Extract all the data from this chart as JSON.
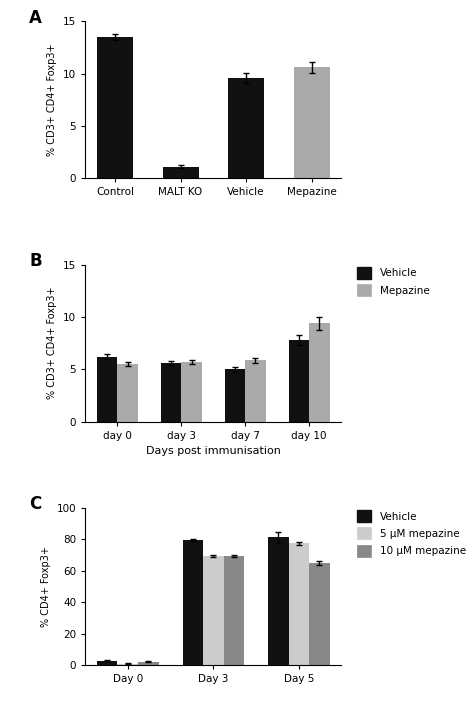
{
  "panel_A": {
    "categories": [
      "Control",
      "MALT KO",
      "Vehicle",
      "Mepazine"
    ],
    "values": [
      13.5,
      1.1,
      9.6,
      10.6
    ],
    "errors": [
      0.3,
      0.15,
      0.45,
      0.55
    ],
    "colors": [
      "#111111",
      "#111111",
      "#111111",
      "#aaaaaa"
    ],
    "ylabel": "% CD3+ CD4+ Foxp3+",
    "ylim": [
      0,
      15
    ],
    "yticks": [
      0,
      5,
      10,
      15
    ]
  },
  "panel_B": {
    "categories": [
      "day 0",
      "day 3",
      "day 7",
      "day 10"
    ],
    "vehicle_values": [
      6.2,
      5.6,
      5.0,
      7.8
    ],
    "vehicle_errors": [
      0.25,
      0.2,
      0.25,
      0.5
    ],
    "mepazine_values": [
      5.5,
      5.7,
      5.85,
      9.4
    ],
    "mepazine_errors": [
      0.2,
      0.2,
      0.2,
      0.65
    ],
    "vehicle_color": "#111111",
    "mepazine_color": "#aaaaaa",
    "ylabel": "% CD3+ CD4+ Foxp3+",
    "xlabel": "Days post immunisation",
    "ylim": [
      0,
      15
    ],
    "yticks": [
      0,
      5,
      10,
      15
    ],
    "legend_labels": [
      "Vehicle",
      "Mepazine"
    ]
  },
  "panel_C": {
    "categories": [
      "Day 0",
      "Day 3",
      "Day 5"
    ],
    "vehicle_values": [
      2.8,
      79.5,
      81.5
    ],
    "vehicle_errors": [
      0.3,
      0.5,
      3.5
    ],
    "mep5_values": [
      0.8,
      69.5,
      77.5
    ],
    "mep5_errors": [
      0.2,
      0.5,
      1.0
    ],
    "mep10_values": [
      2.0,
      69.5,
      65.0
    ],
    "mep10_errors": [
      0.3,
      0.5,
      1.2
    ],
    "vehicle_color": "#111111",
    "mep5_color": "#cccccc",
    "mep10_color": "#888888",
    "ylabel": "% CD4+ Foxp3+",
    "ylim": [
      0,
      100
    ],
    "yticks": [
      0,
      20,
      40,
      60,
      80,
      100
    ],
    "legend_labels": [
      "Vehicle",
      "5 μM mepazine",
      "10 μM mepazine"
    ]
  },
  "figsize": [
    4.74,
    7.15
  ],
  "dpi": 100
}
